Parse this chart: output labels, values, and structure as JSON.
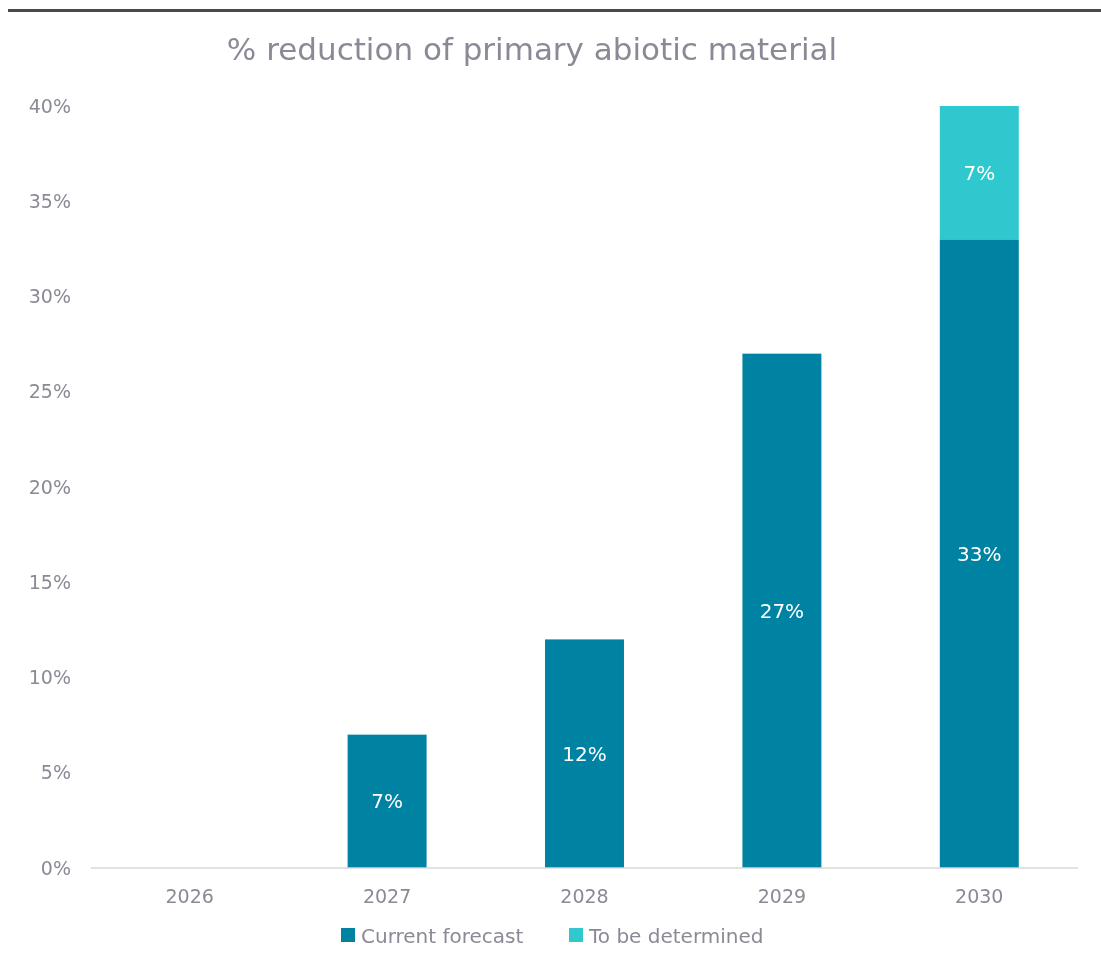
{
  "chart_data": {
    "type": "bar",
    "title": "% reduction of primary abiotic material",
    "categories": [
      "2026",
      "2027",
      "2028",
      "2029",
      "2030"
    ],
    "stacked": true,
    "series": [
      {
        "name": "Current forecast",
        "color": "#0083a3",
        "values": [
          0,
          7,
          12,
          27,
          33
        ],
        "value_labels": [
          null,
          "7%",
          "12%",
          "27%",
          "33%"
        ]
      },
      {
        "name": "To be determined",
        "color": "#30c8cf",
        "values": [
          null,
          null,
          null,
          null,
          7
        ],
        "value_labels": [
          null,
          null,
          null,
          null,
          "7%"
        ]
      }
    ],
    "ylim": [
      0,
      40
    ],
    "yticks": [
      {
        "value": 0,
        "label": "0%"
      },
      {
        "value": 5,
        "label": "5%"
      },
      {
        "value": 10,
        "label": "10%"
      },
      {
        "value": 15,
        "label": "15%"
      },
      {
        "value": 20,
        "label": "20%"
      },
      {
        "value": 25,
        "label": "25%"
      },
      {
        "value": 30,
        "label": "30%"
      },
      {
        "value": 35,
        "label": "35%"
      },
      {
        "value": 40,
        "label": "40%"
      }
    ],
    "grid": false,
    "legend": "bottom"
  }
}
